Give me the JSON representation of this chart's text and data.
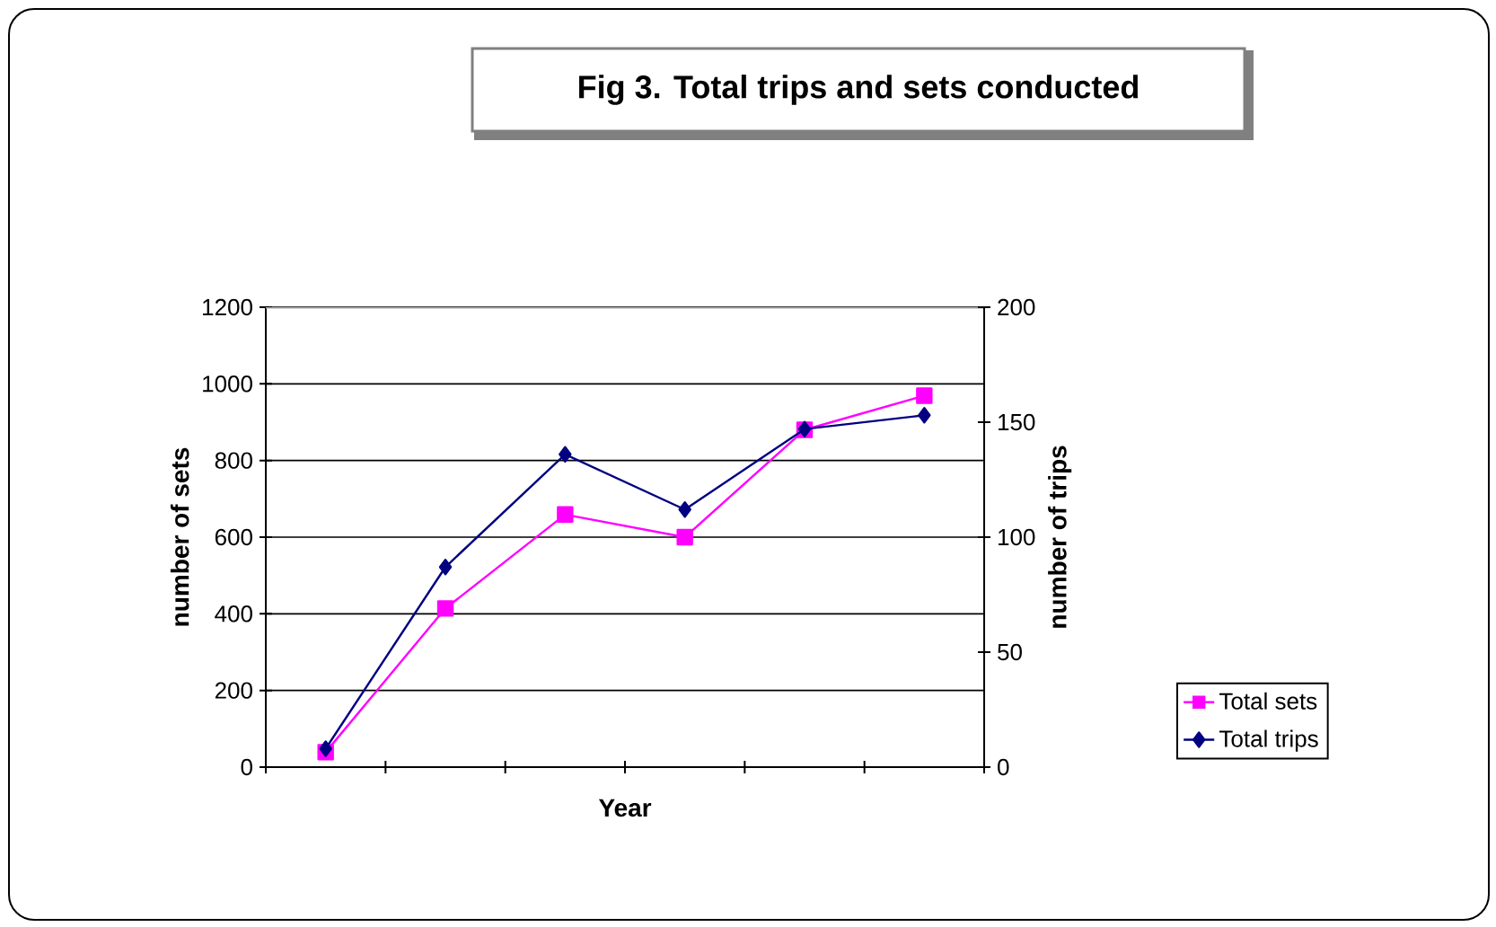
{
  "chart_data": {
    "type": "line",
    "title": "Fig 3. Total trips and sets conducted",
    "xlabel": "Year",
    "ylabel": "number of sets",
    "y2label": "number of trips",
    "categories": [
      null,
      null,
      null,
      null,
      null,
      null
    ],
    "series": [
      {
        "name": "Total sets",
        "color": "#ff00ff",
        "marker": "square",
        "values": [
          39,
          414,
          659,
          600,
          880,
          969
        ]
      },
      {
        "name": "Total trips",
        "color": "#000080",
        "marker": "diamond",
        "axis": "y2",
        "values": [
          8,
          87,
          136,
          112,
          147,
          153
        ]
      }
    ],
    "ylim": [
      0,
      1200
    ],
    "yticks": [
      0,
      200,
      400,
      600,
      800,
      1000,
      1200
    ],
    "y2lim": [
      0,
      200
    ],
    "y2ticks": [
      0,
      50,
      100,
      150,
      200
    ],
    "grid": "y",
    "legend": "right"
  }
}
